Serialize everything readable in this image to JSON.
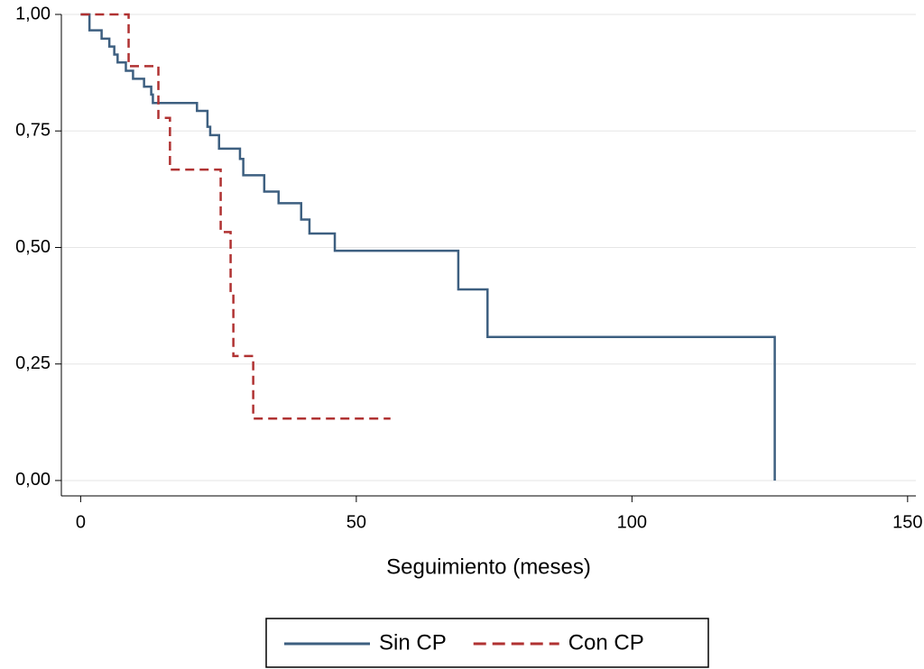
{
  "chart_data": {
    "type": "step",
    "xlabel": "Seguimiento (meses)",
    "xlim": [
      -3.5,
      151.5
    ],
    "xticks": [
      0,
      50,
      100,
      150
    ],
    "ylim": [
      -0.033,
      1.0
    ],
    "yticks": [
      {
        "value": 0,
        "label": "0,00"
      },
      {
        "value": 0.25,
        "label": "0,25"
      },
      {
        "value": 0.5,
        "label": "0,50"
      },
      {
        "value": 0.75,
        "label": "0,75"
      },
      {
        "value": 1,
        "label": "1,00"
      }
    ],
    "grid": true,
    "legend": "bottom",
    "series": [
      {
        "name": "Sin CP",
        "color": "#3d5f80",
        "dash": false,
        "x": [
          0,
          1.6,
          3.8,
          5.2,
          6.1,
          6.7,
          8.2,
          9.5,
          11.5,
          12.8,
          13.1,
          21.1,
          23,
          23.5,
          25.1,
          28.9,
          29.5,
          33.3,
          35.9,
          40,
          41.5,
          46.1,
          68.5,
          73.8,
          125.9
        ],
        "values": [
          1.0,
          0.966,
          0.948,
          0.931,
          0.914,
          0.897,
          0.879,
          0.862,
          0.845,
          0.828,
          0.81,
          0.793,
          0.759,
          0.741,
          0.712,
          0.69,
          0.655,
          0.62,
          0.595,
          0.56,
          0.53,
          0.493,
          0.41,
          0.308,
          0.0
        ]
      },
      {
        "name": "Con CP",
        "color": "#b03232",
        "dash": true,
        "x": [
          0,
          8.7,
          14.1,
          16.2,
          25.4,
          27.2,
          27.7,
          31.3,
          56.2
        ],
        "values": [
          1.0,
          0.889,
          0.778,
          0.667,
          0.533,
          0.4,
          0.267,
          0.133,
          0.133
        ]
      }
    ]
  }
}
